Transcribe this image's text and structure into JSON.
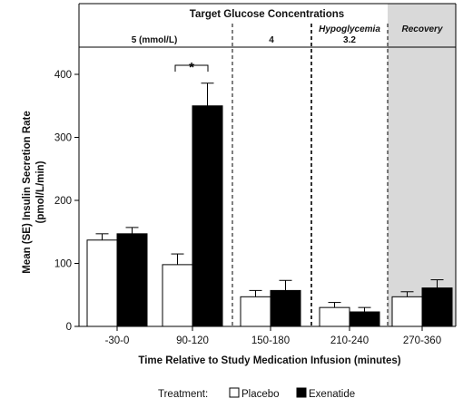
{
  "chart_data": {
    "type": "bar",
    "ylabel_line1": "Mean (SE) Insulin Secretion Rate",
    "ylabel_line2": "(pmol/L/min)",
    "xlabel": "Time Relative to Study Medication Infusion (minutes)",
    "ylim": [
      0,
      450
    ],
    "yticks": [
      0,
      100,
      200,
      300,
      400
    ],
    "categories": [
      "-30-0",
      "90-120",
      "150-180",
      "210-240",
      "270-360"
    ],
    "series": [
      {
        "name": "Placebo",
        "color": "#ffffff",
        "values": [
          137,
          98,
          47,
          30,
          47
        ],
        "errors": [
          10,
          17,
          10,
          8,
          8
        ]
      },
      {
        "name": "Exenatide",
        "color": "#000000",
        "values": [
          147,
          350,
          57,
          23,
          61
        ],
        "errors": [
          10,
          36,
          16,
          7,
          13
        ]
      }
    ],
    "header_title": "Target Glucose Concentrations",
    "phases": [
      {
        "label": "5 (mmol/L)",
        "italic": ""
      },
      {
        "label": "4",
        "italic": ""
      },
      {
        "label": "3.2",
        "italic": "Hypoglycemia"
      },
      {
        "label": "",
        "italic": "Recovery"
      }
    ],
    "annotation": "*",
    "legend_title": "Treatment:",
    "shaded_region_color": "#d9d9d9"
  }
}
